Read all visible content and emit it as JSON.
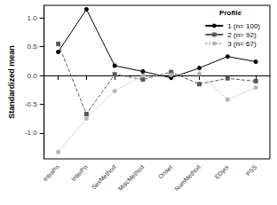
{
  "chart_data": {
    "type": "line",
    "y_label": "Standardized mean",
    "legend_title": "Profile",
    "legend": "upper right",
    "categories": [
      "IntraPn",
      "InterPn",
      "SexMethod",
      "MiscMethod",
      "Onset",
      "NumMethod",
      "EDyrs",
      "PSS"
    ],
    "series": [
      {
        "name": "1 (n= 100)",
        "color": "#000000",
        "marker": "circle",
        "line_style": "solid",
        "values": [
          0.41,
          1.15,
          0.17,
          0.07,
          -0.04,
          0.13,
          0.33,
          0.24
        ]
      },
      {
        "name": "2 (n= 92)",
        "color": "#595959",
        "marker": "square",
        "line_style": "dashed",
        "values": [
          0.55,
          -0.67,
          0.02,
          -0.07,
          0.06,
          -0.15,
          -0.05,
          -0.1
        ]
      },
      {
        "name": "3 (n= 67)",
        "color": "#b3b3b3",
        "marker": "circle",
        "line_style": "dotted",
        "values": [
          -1.33,
          -0.75,
          -0.27,
          0.0,
          0.01,
          0.03,
          -0.42,
          -0.21
        ]
      }
    ],
    "ylim": [
      -1.45,
      1.22
    ],
    "yticks": [
      {
        "value": -1,
        "label": "-1.0"
      },
      {
        "value": -0.5,
        "label": "-0.5"
      },
      {
        "value": 0,
        "label": "0.0"
      },
      {
        "value": 0.5,
        "label": "0.5"
      },
      {
        "value": 1,
        "label": "1.0"
      }
    ],
    "grid": false
  }
}
